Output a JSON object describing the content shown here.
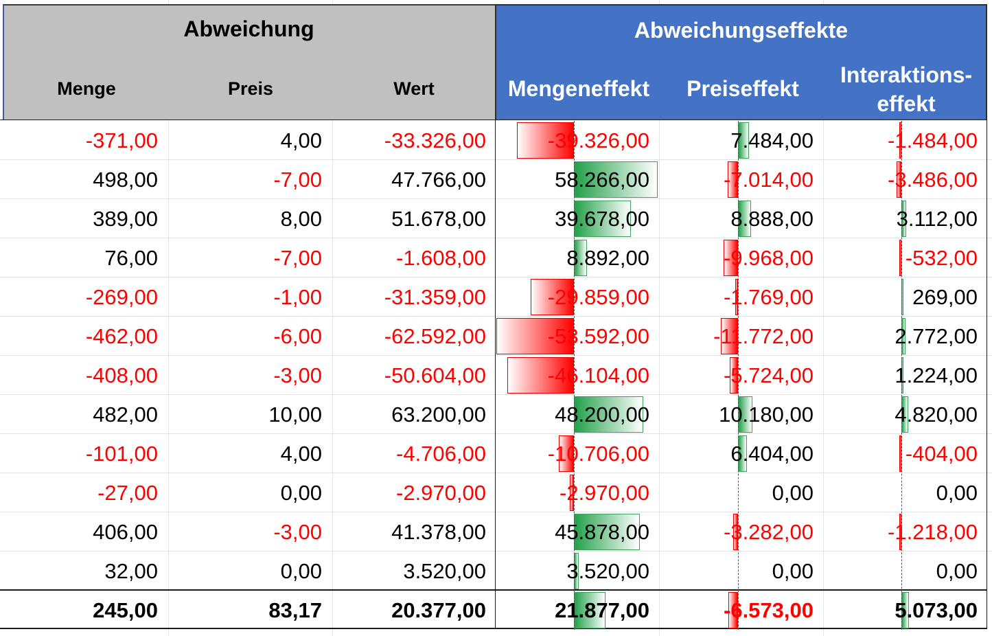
{
  "header": {
    "group_left": "Abweichung",
    "group_right": "Abweichungseffekte",
    "columns": {
      "menge": "Menge",
      "preis": "Preis",
      "wert": "Wert",
      "mengeneffekt": "Mengeneffekt",
      "preiseffekt": "Preiseffekt",
      "interaktion_line1": "Interaktions-",
      "interaktion_line2": "effekt"
    }
  },
  "rows": [
    {
      "menge": "-371,00",
      "preis": "4,00",
      "wert": "-33.326,00",
      "mengeneffekt": "-39.326,00",
      "preiseffekt": "7.484,00",
      "interaktion": "-1.484,00"
    },
    {
      "menge": "498,00",
      "preis": "-7,00",
      "wert": "47.766,00",
      "mengeneffekt": "58.266,00",
      "preiseffekt": "-7.014,00",
      "interaktion": "-3.486,00"
    },
    {
      "menge": "389,00",
      "preis": "8,00",
      "wert": "51.678,00",
      "mengeneffekt": "39.678,00",
      "preiseffekt": "8.888,00",
      "interaktion": "3.112,00"
    },
    {
      "menge": "76,00",
      "preis": "-7,00",
      "wert": "-1.608,00",
      "mengeneffekt": "8.892,00",
      "preiseffekt": "-9.968,00",
      "interaktion": "-532,00"
    },
    {
      "menge": "-269,00",
      "preis": "-1,00",
      "wert": "-31.359,00",
      "mengeneffekt": "-29.859,00",
      "preiseffekt": "-1.769,00",
      "interaktion": "269,00"
    },
    {
      "menge": "-462,00",
      "preis": "-6,00",
      "wert": "-62.592,00",
      "mengeneffekt": "-53.592,00",
      "preiseffekt": "-11.772,00",
      "interaktion": "2.772,00"
    },
    {
      "menge": "-408,00",
      "preis": "-3,00",
      "wert": "-50.604,00",
      "mengeneffekt": "-46.104,00",
      "preiseffekt": "-5.724,00",
      "interaktion": "1.224,00"
    },
    {
      "menge": "482,00",
      "preis": "10,00",
      "wert": "63.200,00",
      "mengeneffekt": "48.200,00",
      "preiseffekt": "10.180,00",
      "interaktion": "4.820,00"
    },
    {
      "menge": "-101,00",
      "preis": "4,00",
      "wert": "-4.706,00",
      "mengeneffekt": "-10.706,00",
      "preiseffekt": "6.404,00",
      "interaktion": "-404,00"
    },
    {
      "menge": "-27,00",
      "preis": "0,00",
      "wert": "-2.970,00",
      "mengeneffekt": "-2.970,00",
      "preiseffekt": "0,00",
      "interaktion": "0,00"
    },
    {
      "menge": "406,00",
      "preis": "-3,00",
      "wert": "41.378,00",
      "mengeneffekt": "45.878,00",
      "preiseffekt": "-3.282,00",
      "interaktion": "-1.218,00"
    },
    {
      "menge": "32,00",
      "preis": "0,00",
      "wert": "3.520,00",
      "mengeneffekt": "3.520,00",
      "preiseffekt": "0,00",
      "interaktion": "0,00"
    }
  ],
  "total": {
    "menge": "245,00",
    "preis": "83,17",
    "wert": "20.377,00",
    "mengeneffekt": "21.877,00",
    "preiseffekt": "-6.573,00",
    "interaktion": "5.073,00"
  },
  "colors": {
    "negative": "#ff0000",
    "positive_bar": "#22a04a",
    "negative_bar": "#ff0000",
    "header_left": "#c0c0c0",
    "header_right": "#4472c4"
  }
}
